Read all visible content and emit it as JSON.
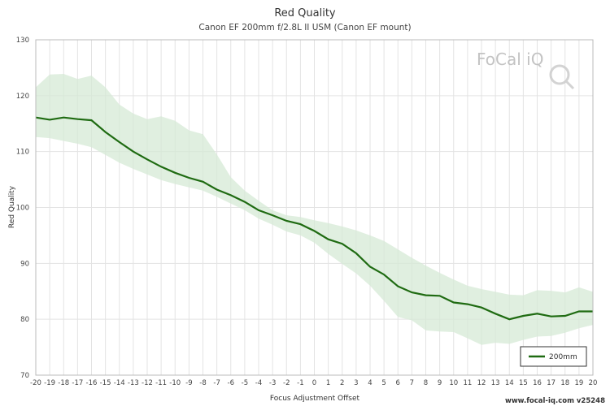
{
  "chart_data": {
    "type": "line",
    "title": "Red Quality",
    "subtitle": "Canon EF 200mm f/2.8L II USM (Canon EF mount)",
    "xlabel": "Focus Adjustment Offset",
    "ylabel": "Red Quality",
    "xlim": [
      -20,
      20
    ],
    "ylim": [
      70,
      130
    ],
    "yticks": [
      70,
      80,
      90,
      100,
      110,
      120,
      130
    ],
    "grid": true,
    "legend_position": "bottom-right",
    "x": [
      -20,
      -19,
      -18,
      -17,
      -16,
      -15,
      -14,
      -13,
      -12,
      -11,
      -10,
      -9,
      -8,
      -7,
      -6,
      -5,
      -4,
      -3,
      -2,
      -1,
      0,
      1,
      2,
      3,
      4,
      5,
      6,
      7,
      8,
      9,
      10,
      11,
      12,
      13,
      14,
      15,
      16,
      17,
      18,
      19,
      20
    ],
    "series": [
      {
        "name": "200mm",
        "color": "#1f6b12",
        "values": [
          116.1,
          115.7,
          116.1,
          115.8,
          115.6,
          113.5,
          111.7,
          110.0,
          108.6,
          107.3,
          106.2,
          105.3,
          104.6,
          103.2,
          102.2,
          101.0,
          99.5,
          98.6,
          97.6,
          97.0,
          95.8,
          94.3,
          93.5,
          91.8,
          89.4,
          88.0,
          85.9,
          84.8,
          84.3,
          84.2,
          83.0,
          82.7,
          82.1,
          81.0,
          80.0,
          80.6,
          81.0,
          80.5,
          80.6,
          81.4,
          81.4
        ]
      }
    ],
    "band": {
      "color": "#d5ead5",
      "upper": [
        121.5,
        123.8,
        123.9,
        123.0,
        123.6,
        121.5,
        118.4,
        116.8,
        115.8,
        116.3,
        115.5,
        113.8,
        113.1,
        109.5,
        105.4,
        103.0,
        101.2,
        99.5,
        98.6,
        98.3,
        97.7,
        97.2,
        96.6,
        95.9,
        95.0,
        94.0,
        92.5,
        91.0,
        89.6,
        88.3,
        87.1,
        86.0,
        85.4,
        84.9,
        84.4,
        84.3,
        85.2,
        85.1,
        84.8,
        85.7,
        84.9
      ],
      "lower": [
        112.6,
        112.4,
        111.9,
        111.4,
        110.8,
        109.4,
        108.0,
        106.9,
        105.9,
        104.9,
        104.2,
        103.6,
        103.0,
        101.9,
        100.7,
        99.5,
        98.0,
        96.9,
        95.7,
        95.0,
        93.7,
        91.7,
        89.9,
        88.2,
        86.0,
        83.3,
        80.4,
        79.8,
        78.0,
        77.8,
        77.7,
        76.6,
        75.4,
        75.8,
        75.6,
        76.3,
        76.9,
        77.0,
        77.6,
        78.4,
        79.0
      ]
    }
  },
  "watermark": {
    "logo_text": "FoCal iQ"
  },
  "footer": {
    "text": "www.focal-iq.com v25248"
  },
  "legend": {
    "label": "200mm"
  }
}
